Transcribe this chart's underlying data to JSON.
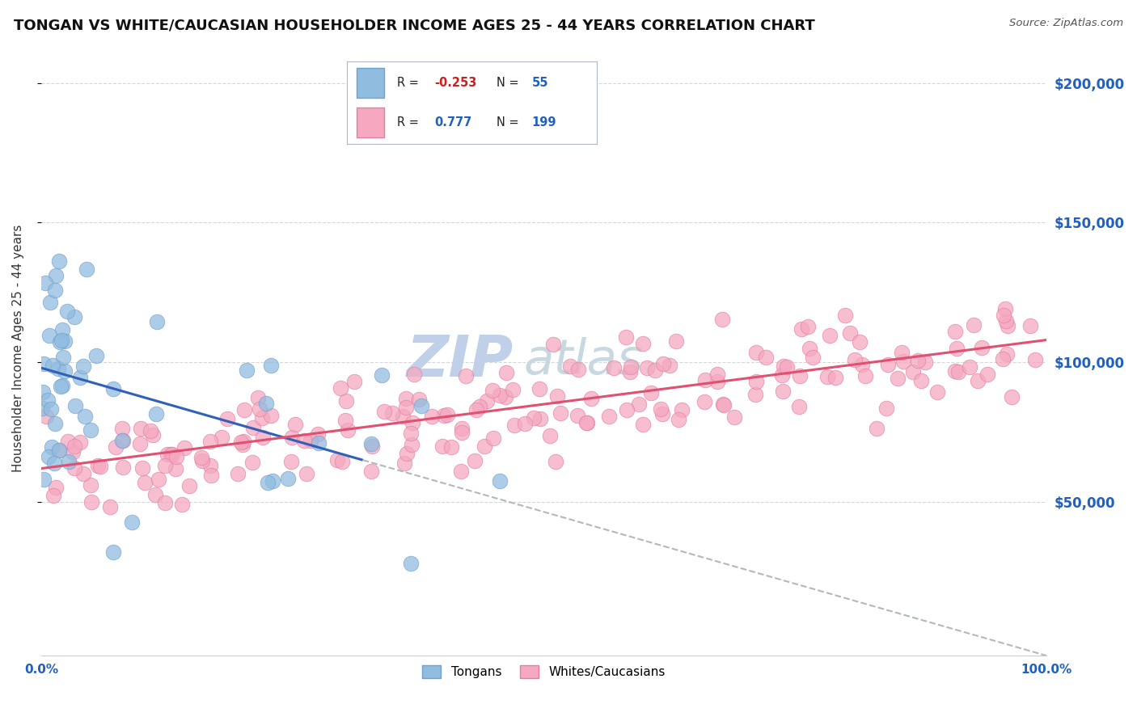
{
  "title": "TONGAN VS WHITE/CAUCASIAN HOUSEHOLDER INCOME AGES 25 - 44 YEARS CORRELATION CHART",
  "source": "Source: ZipAtlas.com",
  "ylabel": "Householder Income Ages 25 - 44 years",
  "watermark_top": "ZIP",
  "watermark_bot": "atlas",
  "y_tick_labels": [
    "$50,000",
    "$100,000",
    "$150,000",
    "$200,000"
  ],
  "y_tick_values": [
    50000,
    100000,
    150000,
    200000
  ],
  "x_tick_labels": [
    "0.0%",
    "100.0%"
  ],
  "x_lim": [
    0,
    100
  ],
  "y_lim": [
    -5000,
    215000
  ],
  "bg_color": "#ffffff",
  "grid_color": "#cccccc",
  "dot_size": 180,
  "blue_dot_color": "#90bce0",
  "blue_dot_edge": "#70a0cc",
  "pink_dot_color": "#f5a8c0",
  "pink_dot_edge": "#e080a0",
  "blue_line_color": "#3060b8",
  "pink_line_color": "#e05070",
  "dashed_line_color": "#b0b8c0",
  "title_fontsize": 13,
  "axis_label_fontsize": 11,
  "tick_label_fontsize": 11,
  "watermark_color_zip": "#c0d0e8",
  "watermark_color_atlas": "#c8d8e0",
  "watermark_fontsize": 52,
  "r_blue": -0.253,
  "n_blue": 55,
  "r_pink": 0.777,
  "n_pink": 199,
  "blue_trendline_y0": 98000,
  "blue_trendline_y1": 65000,
  "blue_trendline_x0": 0,
  "blue_trendline_x1": 32,
  "blue_dash_x0": 32,
  "blue_dash_x1": 100,
  "blue_dash_y0": 65000,
  "blue_dash_y1": -5000,
  "pink_trendline_y0": 62000,
  "pink_trendline_y1": 108000,
  "pink_trendline_x0": 0,
  "pink_trendline_x1": 100
}
